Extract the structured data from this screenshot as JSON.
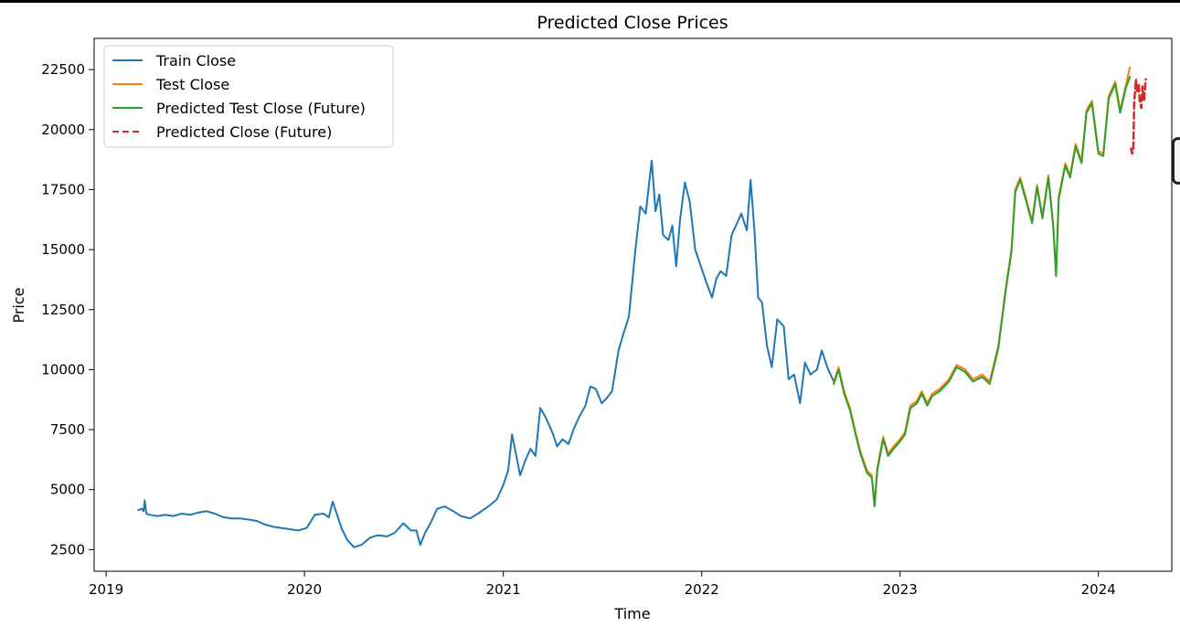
{
  "chart_data": {
    "type": "line",
    "title": "Predicted Close Prices",
    "xlabel": "Time",
    "ylabel": "Price",
    "xlim": [
      "2018-12-10",
      "2024-05-15"
    ],
    "ylim": [
      1600,
      23800
    ],
    "x_ticks": [
      "2019",
      "2020",
      "2021",
      "2022",
      "2023",
      "2024"
    ],
    "y_ticks": [
      2500,
      5000,
      7500,
      10000,
      12500,
      15000,
      17500,
      20000,
      22500
    ],
    "grid": false,
    "legend_position": "top-left",
    "series": [
      {
        "name": "Train Close",
        "color": "#1f77b4",
        "style": "solid",
        "x": [
          "2019-03-01",
          "2019-03-08",
          "2019-03-11",
          "2019-03-13",
          "2019-03-16",
          "2019-03-23",
          "2019-04-05",
          "2019-04-20",
          "2019-05-05",
          "2019-05-20",
          "2019-06-05",
          "2019-06-20",
          "2019-07-05",
          "2019-07-20",
          "2019-08-05",
          "2019-08-20",
          "2019-09-05",
          "2019-09-20",
          "2019-10-05",
          "2019-10-20",
          "2019-11-05",
          "2019-11-20",
          "2019-12-05",
          "2019-12-20",
          "2020-01-05",
          "2020-01-20",
          "2020-02-05",
          "2020-02-15",
          "2020-02-22",
          "2020-03-01",
          "2020-03-10",
          "2020-03-20",
          "2020-04-01",
          "2020-04-15",
          "2020-05-01",
          "2020-05-15",
          "2020-06-01",
          "2020-06-15",
          "2020-07-01",
          "2020-07-15",
          "2020-07-25",
          "2020-08-01",
          "2020-08-10",
          "2020-08-20",
          "2020-09-01",
          "2020-09-15",
          "2020-10-01",
          "2020-10-15",
          "2020-11-01",
          "2020-11-15",
          "2020-12-01",
          "2020-12-10",
          "2020-12-20",
          "2021-01-01",
          "2021-01-10",
          "2021-01-17",
          "2021-01-24",
          "2021-02-01",
          "2021-02-10",
          "2021-02-20",
          "2021-03-01",
          "2021-03-10",
          "2021-03-20",
          "2021-04-01",
          "2021-04-10",
          "2021-04-20",
          "2021-05-01",
          "2021-05-10",
          "2021-05-20",
          "2021-06-01",
          "2021-06-10",
          "2021-06-20",
          "2021-07-01",
          "2021-07-10",
          "2021-07-20",
          "2021-08-01",
          "2021-08-10",
          "2021-08-20",
          "2021-09-01",
          "2021-09-10",
          "2021-09-20",
          "2021-09-25",
          "2021-10-01",
          "2021-10-08",
          "2021-10-15",
          "2021-10-22",
          "2021-11-01",
          "2021-11-08",
          "2021-11-15",
          "2021-11-22",
          "2021-12-01",
          "2021-12-10",
          "2021-12-20",
          "2022-01-01",
          "2022-01-10",
          "2022-01-20",
          "2022-01-28",
          "2022-02-05",
          "2022-02-15",
          "2022-02-25",
          "2022-03-05",
          "2022-03-15",
          "2022-03-25",
          "2022-04-01",
          "2022-04-08",
          "2022-04-15",
          "2022-04-22",
          "2022-05-01",
          "2022-05-10",
          "2022-05-20",
          "2022-06-01",
          "2022-06-10",
          "2022-06-20",
          "2022-07-01",
          "2022-07-10",
          "2022-07-20",
          "2022-08-01",
          "2022-08-10",
          "2022-08-20",
          "2022-09-01"
        ],
        "y": [
          4150,
          4200,
          4100,
          4550,
          4000,
          3950,
          3900,
          3950,
          3900,
          4000,
          3950,
          4050,
          4100,
          4000,
          3850,
          3800,
          3800,
          3750,
          3700,
          3550,
          3450,
          3400,
          3350,
          3300,
          3400,
          3950,
          4000,
          3850,
          4500,
          3950,
          3350,
          2900,
          2600,
          2700,
          3000,
          3100,
          3050,
          3200,
          3600,
          3300,
          3300,
          2700,
          3200,
          3600,
          4200,
          4300,
          4100,
          3900,
          3800,
          4000,
          4250,
          4400,
          4600,
          5200,
          5800,
          7300,
          6500,
          5600,
          6200,
          6700,
          6400,
          8400,
          8000,
          7400,
          6800,
          7100,
          6900,
          7500,
          8000,
          8500,
          9300,
          9200,
          8600,
          8800,
          9100,
          10800,
          11500,
          12200,
          15000,
          16800,
          16500,
          17500,
          18700,
          16600,
          17300,
          15600,
          15400,
          16000,
          14300,
          16200,
          17800,
          17000,
          15000,
          14200,
          13600,
          13000,
          13800,
          14100,
          13900,
          15600,
          16000,
          16500,
          15800,
          17900,
          15800,
          13000,
          12800,
          11000,
          10100,
          12100,
          11800,
          9600,
          9800,
          8600,
          10300,
          9800,
          10000,
          10800,
          10100,
          9500
        ]
      },
      {
        "name": "Test Close",
        "color": "#ff7f0e",
        "style": "solid",
        "x": [
          "2022-09-01",
          "2022-09-10",
          "2022-09-20",
          "2022-10-01",
          "2022-10-10",
          "2022-10-20",
          "2022-11-01",
          "2022-11-10",
          "2022-11-15",
          "2022-11-20",
          "2022-12-01",
          "2022-12-10",
          "2022-12-20",
          "2023-01-01",
          "2023-01-10",
          "2023-01-20",
          "2023-02-01",
          "2023-02-10",
          "2023-02-20",
          "2023-03-01",
          "2023-03-15",
          "2023-04-01",
          "2023-04-15",
          "2023-05-01",
          "2023-05-15",
          "2023-06-01",
          "2023-06-15",
          "2023-07-01",
          "2023-07-15",
          "2023-07-25",
          "2023-08-01",
          "2023-08-10",
          "2023-08-20",
          "2023-09-01",
          "2023-09-10",
          "2023-09-20",
          "2023-10-01",
          "2023-10-10",
          "2023-10-15",
          "2023-10-20",
          "2023-11-01",
          "2023-11-10",
          "2023-11-20",
          "2023-12-01",
          "2023-12-10",
          "2023-12-20",
          "2024-01-01",
          "2024-01-10",
          "2024-01-20",
          "2024-02-01",
          "2024-02-10",
          "2024-02-20",
          "2024-02-28"
        ],
        "y": [
          9500,
          10100,
          9100,
          8400,
          7500,
          6600,
          5800,
          5600,
          4400,
          5900,
          7200,
          6500,
          6800,
          7100,
          7400,
          8500,
          8700,
          9100,
          8600,
          9000,
          9200,
          9600,
          10200,
          10000,
          9600,
          9800,
          9500,
          11000,
          13500,
          15000,
          17500,
          18000,
          17200,
          16200,
          17700,
          16400,
          18100,
          16000,
          14000,
          17200,
          18600,
          18100,
          19400,
          18700,
          20800,
          21200,
          19100,
          19000,
          21400,
          22000,
          20800,
          21800,
          22600
        ]
      },
      {
        "name": "Predicted Test Close (Future)",
        "color": "#2ca02c",
        "style": "solid",
        "x": [
          "2022-09-01",
          "2022-09-10",
          "2022-09-20",
          "2022-10-01",
          "2022-10-10",
          "2022-10-20",
          "2022-11-01",
          "2022-11-10",
          "2022-11-15",
          "2022-11-20",
          "2022-12-01",
          "2022-12-10",
          "2022-12-20",
          "2023-01-01",
          "2023-01-10",
          "2023-01-20",
          "2023-02-01",
          "2023-02-10",
          "2023-02-20",
          "2023-03-01",
          "2023-03-15",
          "2023-04-01",
          "2023-04-15",
          "2023-05-01",
          "2023-05-15",
          "2023-06-01",
          "2023-06-15",
          "2023-07-01",
          "2023-07-15",
          "2023-07-25",
          "2023-08-01",
          "2023-08-10",
          "2023-08-20",
          "2023-09-01",
          "2023-09-10",
          "2023-09-20",
          "2023-10-01",
          "2023-10-10",
          "2023-10-15",
          "2023-10-20",
          "2023-11-01",
          "2023-11-10",
          "2023-11-20",
          "2023-12-01",
          "2023-12-10",
          "2023-12-20",
          "2024-01-01",
          "2024-01-10",
          "2024-01-20",
          "2024-02-01",
          "2024-02-10",
          "2024-02-20",
          "2024-02-28"
        ],
        "y": [
          9400,
          10000,
          9000,
          8300,
          7400,
          6500,
          5700,
          5500,
          4300,
          5800,
          7100,
          6400,
          6700,
          7000,
          7300,
          8400,
          8600,
          9000,
          8500,
          8900,
          9100,
          9500,
          10100,
          9900,
          9500,
          9700,
          9400,
          10900,
          13400,
          14900,
          17400,
          17900,
          17100,
          16100,
          17600,
          16300,
          18000,
          15900,
          13900,
          17100,
          18500,
          18000,
          19300,
          18600,
          20700,
          21100,
          19000,
          18900,
          21300,
          21900,
          20700,
          21700,
          22200
        ]
      },
      {
        "name": "Predicted Close (Future)",
        "color": "#d62728",
        "style": "dashed",
        "x": [
          "2024-03-01",
          "2024-03-03",
          "2024-03-05",
          "2024-03-07",
          "2024-03-10",
          "2024-03-12",
          "2024-03-15",
          "2024-03-17",
          "2024-03-20",
          "2024-03-22",
          "2024-03-25",
          "2024-03-28"
        ],
        "y": [
          19200,
          19000,
          19100,
          21200,
          22100,
          21600,
          21900,
          21200,
          20900,
          21800,
          21200,
          22100
        ]
      }
    ]
  }
}
